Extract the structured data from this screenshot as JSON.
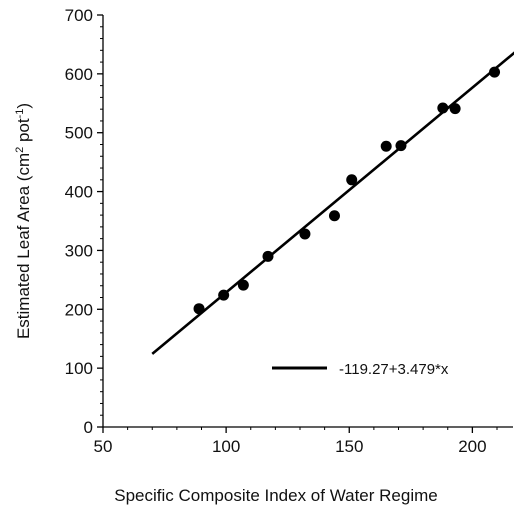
{
  "chart_data": {
    "type": "scatter",
    "xlabel": "Specific Composite Index of Water Regime",
    "ylabel": {
      "prefix": "Estimated Leaf Area (cm",
      "sup1": "2",
      "middle": " pot",
      "sup2": "-1",
      "suffix": ")"
    },
    "xlim": [
      50,
      220
    ],
    "ylim": [
      0,
      700
    ],
    "x_ticks": [
      50,
      100,
      150,
      200
    ],
    "y_ticks": [
      0,
      100,
      200,
      300,
      400,
      500,
      600,
      700
    ],
    "grid": false,
    "legend_position": "lower-right",
    "points": [
      {
        "x": 89,
        "y": 201
      },
      {
        "x": 99,
        "y": 224
      },
      {
        "x": 107,
        "y": 241
      },
      {
        "x": 117,
        "y": 290
      },
      {
        "x": 132,
        "y": 328
      },
      {
        "x": 144,
        "y": 359
      },
      {
        "x": 151,
        "y": 420
      },
      {
        "x": 165,
        "y": 477
      },
      {
        "x": 171,
        "y": 478
      },
      {
        "x": 188,
        "y": 542
      },
      {
        "x": 193,
        "y": 541
      },
      {
        "x": 209,
        "y": 603
      }
    ],
    "fit_line": {
      "label": "-119.27+3.479*x",
      "intercept": -119.27,
      "slope": 3.479,
      "x_start": 70,
      "x_end": 220
    },
    "colors": {
      "marker": "#000000",
      "line": "#000000",
      "axis": "#000000"
    }
  }
}
